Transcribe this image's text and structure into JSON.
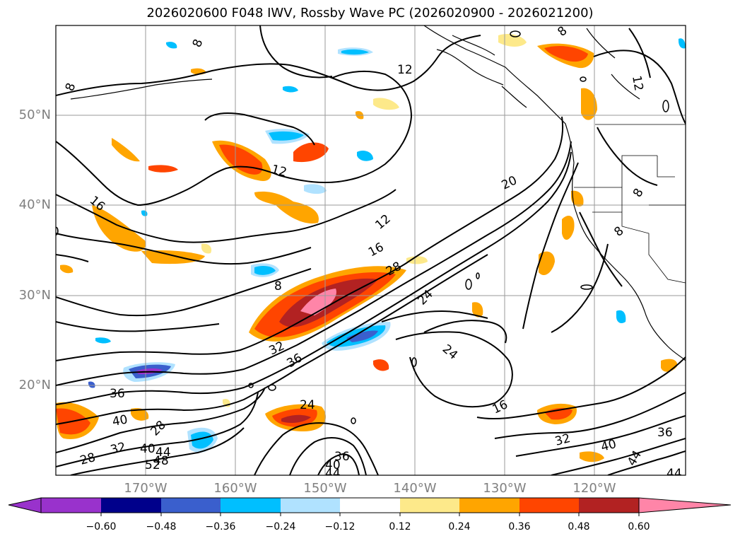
{
  "title": "2026020600 F048 IWV, Rossby Wave PC (2026020900 - 2026021200)",
  "lat_labels": [
    "50°N",
    "40°N",
    "30°N",
    "20°N"
  ],
  "lon_labels": [
    "170°W",
    "160°W",
    "150°W",
    "140°W",
    "130°W",
    "120°W"
  ],
  "colorbar": {
    "ticks": [
      "−0.60",
      "−0.48",
      "−0.36",
      "−0.24",
      "−0.12",
      "0.12",
      "0.24",
      "0.36",
      "0.48",
      "0.60"
    ],
    "colors": [
      "#9932cc",
      "#00008b",
      "#3a5fcd",
      "#00bfff",
      "#b0e2ff",
      "#ffffff",
      "#fde98a",
      "#ffa500",
      "#ff4500",
      "#b22222",
      "#ff85a8"
    ]
  },
  "contour_labels": [
    "8",
    "8",
    "12",
    "12",
    "16",
    "12",
    "16",
    "20",
    "28",
    "24",
    "24",
    "32",
    "36",
    "36",
    "40",
    "28",
    "32",
    "40",
    "44",
    "48",
    "52",
    "28",
    "24",
    "36",
    "40",
    "44",
    "16",
    "32",
    "36",
    "40",
    "44",
    "44",
    "12",
    "8",
    "8",
    "8",
    "8",
    "0"
  ]
}
